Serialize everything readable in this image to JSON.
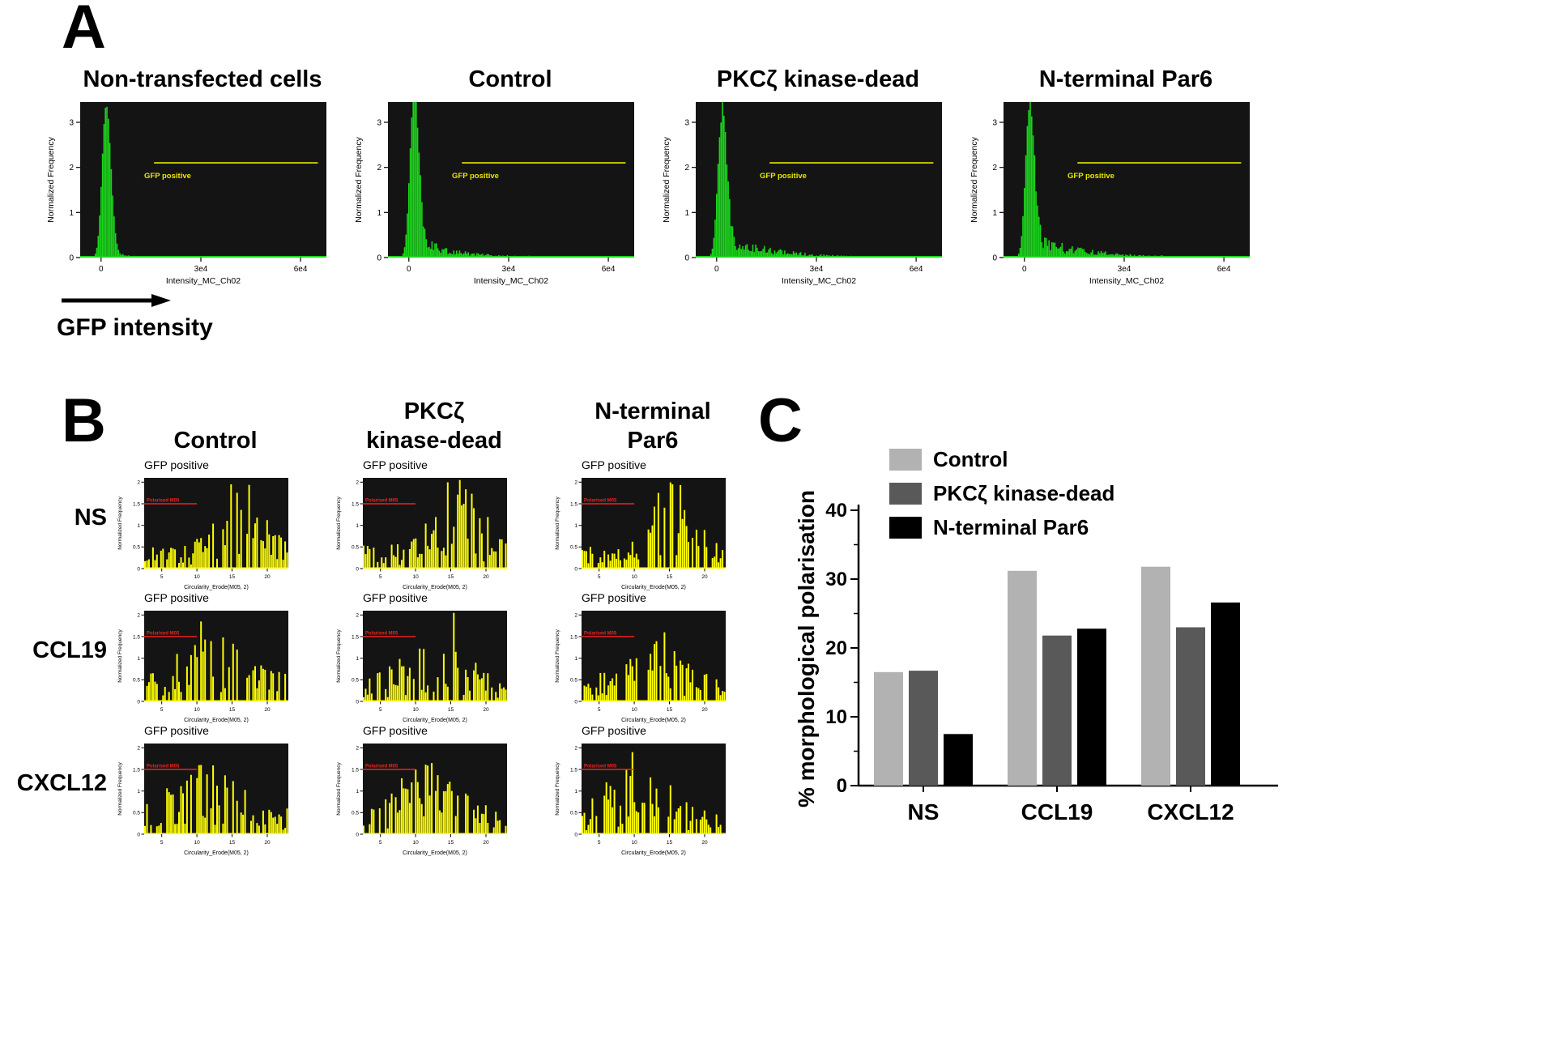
{
  "figure": {
    "panel_a_label": "A",
    "panel_b_label": "B",
    "panel_c_label": "C",
    "gfp_intensity_label": "GFP intensity"
  },
  "chart_data": [
    {
      "id": "panel-A-gfp-intensity-histograms",
      "type": "area",
      "ylabel": "Normalized Frequency",
      "xlabel": "Intensity_MC_Ch02",
      "ylim": [
        0,
        3.45
      ],
      "yticks": [
        "0",
        "1",
        "2",
        "3"
      ],
      "xticks": [
        {
          "label": "0",
          "f": 0.085
        },
        {
          "label": "3e4",
          "f": 0.49
        },
        {
          "label": "6e4",
          "f": 0.895
        }
      ],
      "bar_color": "#1bd41b",
      "plot_bg": "#141414",
      "gate": {
        "label": "GFP positive",
        "y": 2.1,
        "x0": 0.3,
        "x1": 0.965,
        "color": "#e8e800"
      },
      "plots": [
        {
          "title": "Non-transfected cells",
          "peak": 3.35,
          "tail_amp": 0.12,
          "tail_decay": 11,
          "seed": 7
        },
        {
          "title": "Control",
          "peak": 3.52,
          "tail_amp": 0.5,
          "tail_decay": 6.5,
          "seed": 19
        },
        {
          "title": "PKCζ kinase-dead",
          "peak": 3.02,
          "tail_amp": 0.55,
          "tail_decay": 5.5,
          "seed": 41
        },
        {
          "title": "N-terminal Par6",
          "peak": 3.3,
          "tail_amp": 0.5,
          "tail_decay": 4.8,
          "seed": 63
        }
      ]
    },
    {
      "id": "panel-B-circularity-histograms",
      "type": "bar",
      "subplot_title": "GFP positive",
      "ylabel": "Normalized Frequency",
      "xlabel": "Circularity_Erode(M05, 2)",
      "xlim": [
        2.5,
        23
      ],
      "ylim": [
        0,
        2.1
      ],
      "yticks": [
        "0",
        "0.5",
        "1",
        "1.5",
        "2"
      ],
      "xticks": [
        "5",
        "10",
        "15",
        "20"
      ],
      "bar_color": "#ffff00",
      "plot_bg": "#141414",
      "gate": {
        "label": "Polarised M05",
        "y": 1.5,
        "x_end": 10,
        "color": "#ee2222"
      },
      "columns": [
        "Control",
        "PKCζ kinase-dead",
        "N-terminal Par6"
      ],
      "columns_display": [
        "Control",
        "PKCζ\nkinase-dead",
        "N-terminal\nPar6"
      ],
      "rows": [
        "NS",
        "CCL19",
        "CXCL12"
      ],
      "cells": [
        [
          {
            "seed": 11,
            "center": 16.0,
            "spread": 3.0,
            "base": 0.3,
            "amp": 0.9,
            "density": 0.72,
            "spike_x": 14.8,
            "spike_h": 1.95
          },
          {
            "seed": 12,
            "center": 16.0,
            "spread": 3.2,
            "base": 0.3,
            "amp": 0.95,
            "density": 0.7,
            "spike_x": 16.2,
            "spike_h": 2.05
          },
          {
            "seed": 13,
            "center": 15.5,
            "spread": 2.8,
            "base": 0.28,
            "amp": 0.95,
            "density": 0.7,
            "spike_x": 15.2,
            "spike_h": 1.95
          }
        ],
        [
          {
            "seed": 21,
            "center": 12.0,
            "spread": 4.2,
            "base": 0.35,
            "amp": 0.55,
            "density": 0.72,
            "spike_x": 10.5,
            "spike_h": 1.85
          },
          {
            "seed": 22,
            "center": 13.0,
            "spread": 4.0,
            "base": 0.32,
            "amp": 0.55,
            "density": 0.68,
            "spike_x": 15.4,
            "spike_h": 2.05
          },
          {
            "seed": 23,
            "center": 13.0,
            "spread": 4.2,
            "base": 0.3,
            "amp": 0.5,
            "density": 0.66,
            "spike_x": 14.2,
            "spike_h": 1.6
          }
        ],
        [
          {
            "seed": 31,
            "center": 11.0,
            "spread": 4.5,
            "base": 0.32,
            "amp": 0.6,
            "density": 0.72,
            "spike_x": 10.2,
            "spike_h": 1.6
          },
          {
            "seed": 32,
            "center": 11.5,
            "spread": 4.5,
            "base": 0.3,
            "amp": 0.6,
            "density": 0.68,
            "spike_x": 12.1,
            "spike_h": 1.65
          },
          {
            "seed": 33,
            "center": 10.5,
            "spread": 4.2,
            "base": 0.3,
            "amp": 0.65,
            "density": 0.7,
            "spike_x": 9.6,
            "spike_h": 1.9
          }
        ]
      ]
    },
    {
      "id": "panel-C-polarisation-bar-chart",
      "type": "bar",
      "ylabel": "% morphological polarisation",
      "ylim": [
        0,
        40
      ],
      "yticks": [
        0,
        10,
        20,
        30,
        40
      ],
      "categories": [
        "NS",
        "CCL19",
        "CXCL12"
      ],
      "legend_position": "top-left",
      "series": [
        {
          "name": "Control",
          "color": "#b2b2b2",
          "values": [
            16.5,
            31.2,
            31.8
          ]
        },
        {
          "name": "PKCζ kinase-dead",
          "color": "#595959",
          "values": [
            16.7,
            21.8,
            23.0
          ]
        },
        {
          "name": "N-terminal Par6",
          "color": "#000000",
          "values": [
            7.5,
            22.8,
            26.6
          ]
        }
      ]
    }
  ]
}
